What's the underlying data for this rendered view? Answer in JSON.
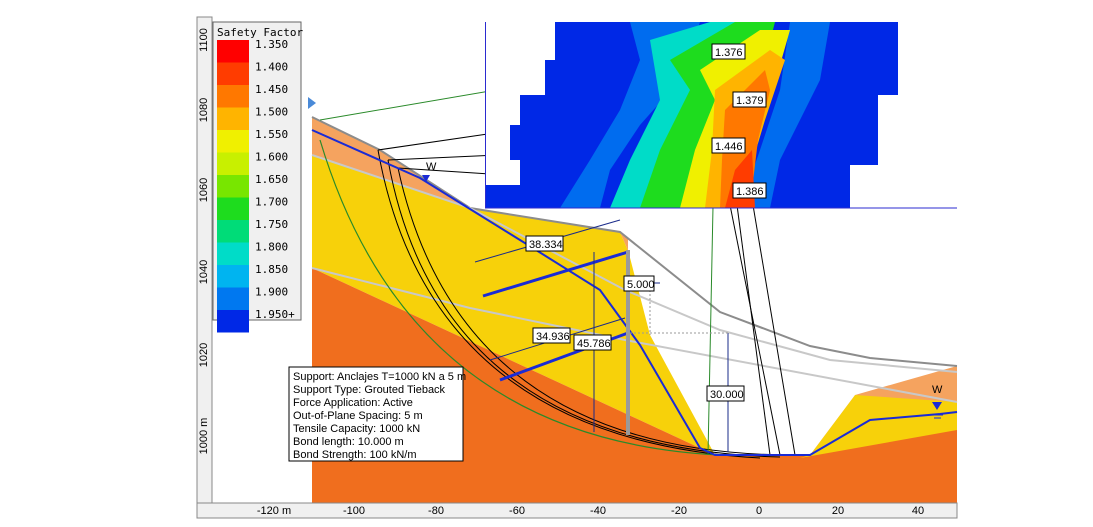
{
  "legend": {
    "title": "Safety Factor",
    "entries": [
      {
        "label": "1.350",
        "color": "#ff0000"
      },
      {
        "label": "1.400",
        "color": "#ff3c00"
      },
      {
        "label": "1.450",
        "color": "#ff7800"
      },
      {
        "label": "1.500",
        "color": "#ffb400"
      },
      {
        "label": "1.550",
        "color": "#f0f000"
      },
      {
        "label": "1.600",
        "color": "#c8f000"
      },
      {
        "label": "1.650",
        "color": "#78e600"
      },
      {
        "label": "1.700",
        "color": "#1edc1e"
      },
      {
        "label": "1.750",
        "color": "#00dc78"
      },
      {
        "label": "1.800",
        "color": "#00dcc8"
      },
      {
        "label": "1.850",
        "color": "#00b4f0"
      },
      {
        "label": "1.900",
        "color": "#0078f0"
      },
      {
        "label": "1.950+",
        "color": "#0028e6"
      }
    ]
  },
  "axes": {
    "x_ticks": [
      "-120 m",
      "-100",
      "-80",
      "-60",
      "-40",
      "-20",
      "0",
      "20",
      "40"
    ],
    "y_ticks": [
      "1100",
      "1080",
      "1060",
      "1040",
      "1020",
      "1000 m"
    ]
  },
  "grid_labels": [
    "1.376",
    "1.379",
    "1.446",
    "1.386"
  ],
  "dimensions": {
    "d1": "38.334",
    "d2": "5.000",
    "d3": "34.936",
    "d4": "45.786",
    "d5": "30.000"
  },
  "water_marker": "W",
  "support_info": [
    "Support: Anclajes T=1000 kN a 5 m",
    "Support Type: Grouted Tieback",
    "Force Application: Active",
    "Out-of-Plane Spacing: 5 m",
    "Tensile Capacity: 1000 kN",
    "Bond length: 10.000 m",
    "Bond Strength: 100 kN/m"
  ],
  "colors": {
    "layer_top": "#f5a35f",
    "layer_mid": "#f7d10a",
    "layer_base": "#f06e1e",
    "water_line": "#1a2bd6",
    "grid_bg": "#0028e6"
  }
}
